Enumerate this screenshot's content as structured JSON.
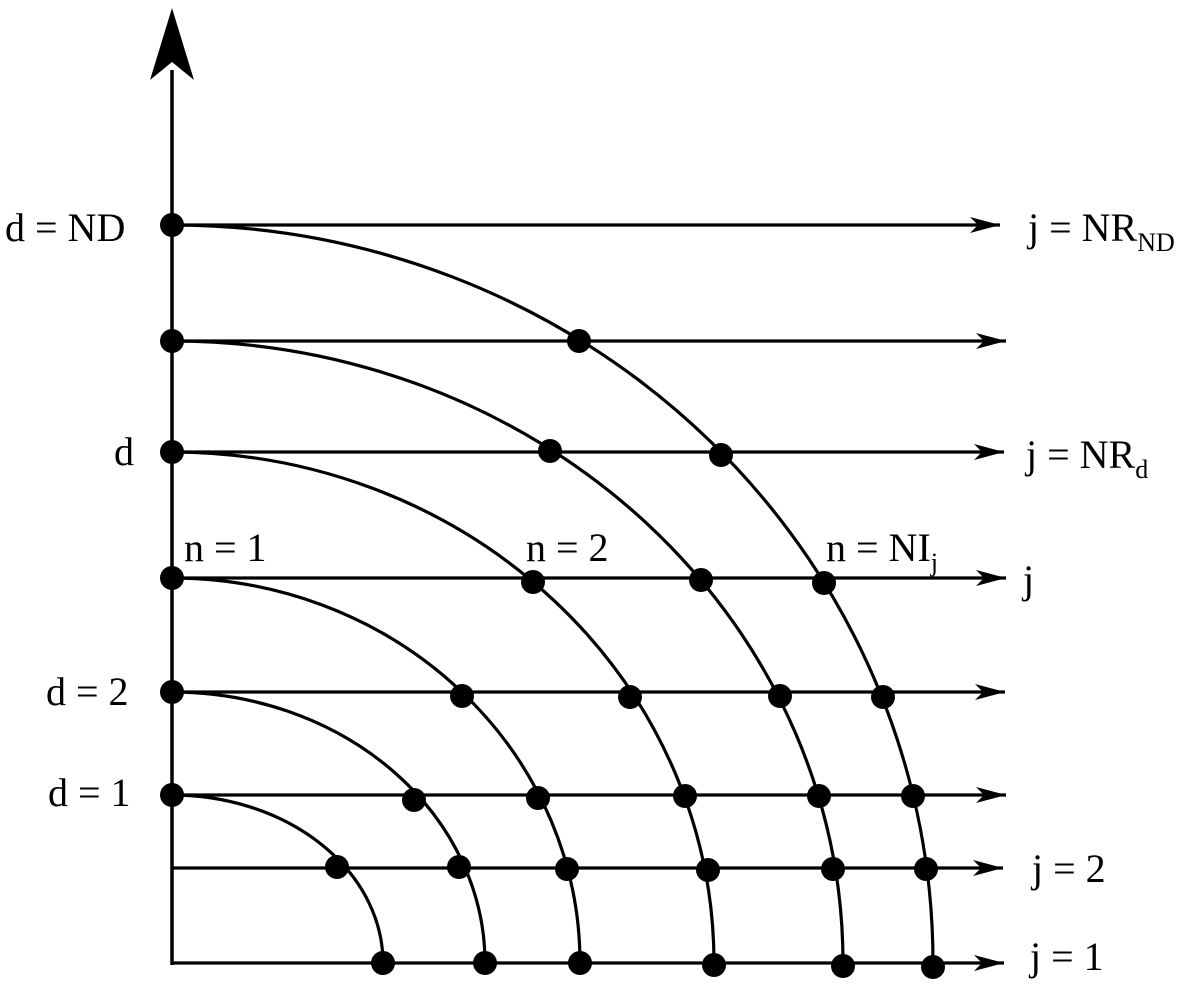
{
  "diagram": {
    "stroke_color": "#000000",
    "background": "#ffffff",
    "vertical_axis": {
      "has_arrow_head": true
    },
    "left_labels": {
      "d_nd": "d = ND",
      "d": "d",
      "d_2": "d = 2",
      "d_1": "d = 1"
    },
    "ray_labels": {
      "j_nrnd_main": "j = NR",
      "j_nrnd_sub": "ND",
      "j_nrd_main": "j = NR",
      "j_nrd_sub": "d",
      "j": "j",
      "j_2": "j = 2",
      "j_1": "j = 1"
    },
    "n_labels": {
      "n_1": "n = 1",
      "n_2": "n = 2",
      "n_nij_main": "n = NI",
      "n_nij_sub": "j"
    },
    "levels": {
      "rays": 8,
      "arcs": 6
    }
  }
}
